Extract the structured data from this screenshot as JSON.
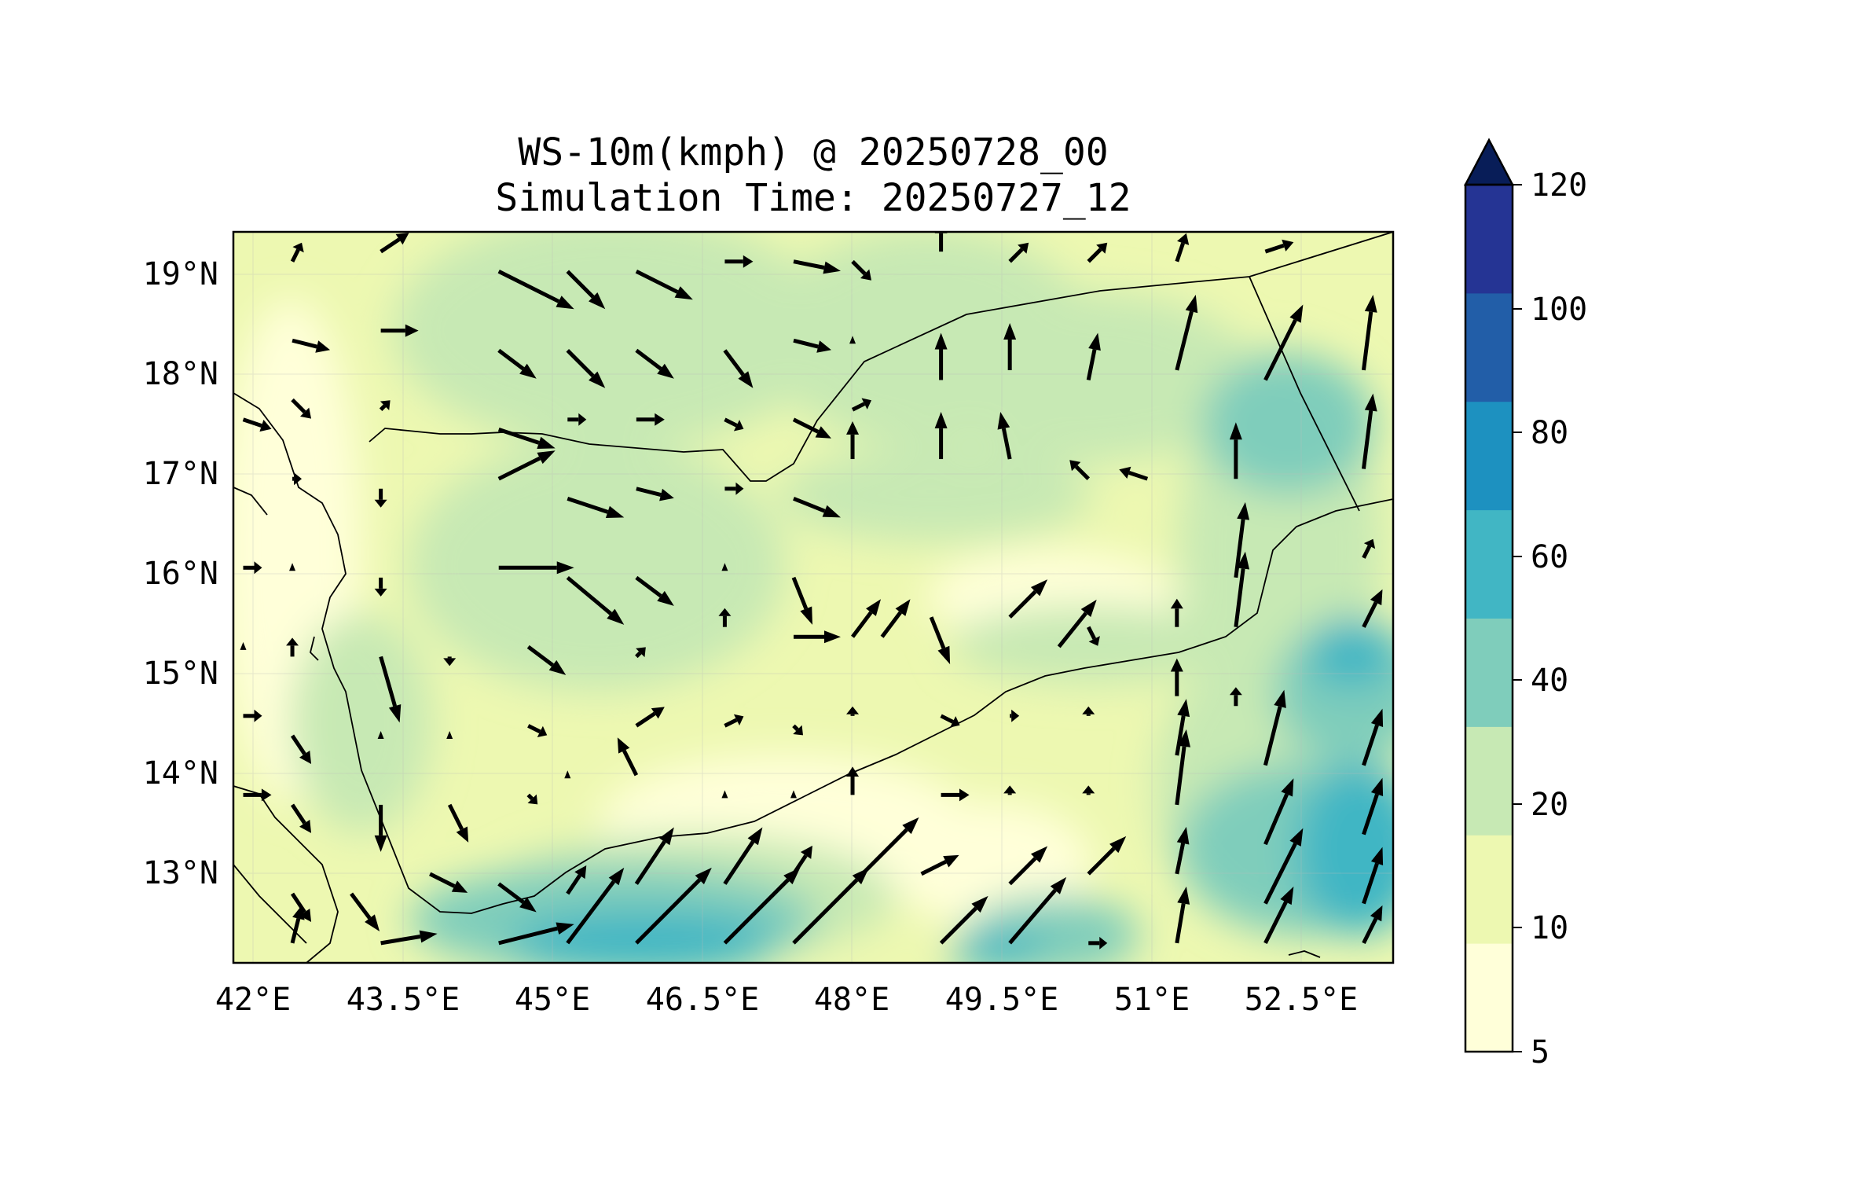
{
  "title": {
    "line1": "WS-10m(kmph) @ 20250728_00",
    "line2": "Simulation Time: 20250727_12"
  },
  "chart_data": {
    "type": "heatmap",
    "variable": "WS-10m(kmph)",
    "valid_time": "20250728_00",
    "simulation_time": "20250727_12",
    "x_ticks": [
      "42°E",
      "43.5°E",
      "45°E",
      "46.5°E",
      "48°E",
      "49.5°E",
      "51°E",
      "52.5°E"
    ],
    "x_tick_values": [
      42,
      43.5,
      45,
      46.5,
      48,
      49.5,
      51,
      52.5
    ],
    "y_ticks": [
      "13°N",
      "14°N",
      "15°N",
      "16°N",
      "17°N",
      "18°N",
      "19°N"
    ],
    "y_tick_values": [
      13,
      14,
      15,
      16,
      17,
      18,
      19
    ],
    "xlim": [
      41.8,
      53.6
    ],
    "ylim": [
      12.0,
      19.4
    ],
    "grid": true,
    "colorbar": {
      "levels": [
        5,
        10,
        20,
        40,
        60,
        80,
        100,
        120
      ],
      "labels": [
        "5",
        "10",
        "20",
        "40",
        "60",
        "80",
        "100",
        "120"
      ],
      "colors": [
        "#ffffd9",
        "#edf8b1",
        "#c7e9b4",
        "#7fcdbb",
        "#41b6c4",
        "#1d91c0",
        "#225ea8",
        "#253494"
      ],
      "extend_color": "#081d58",
      "extend": "max"
    },
    "wind_vectors": [
      [
        42.4,
        19.1,
        1,
        2
      ],
      [
        43.3,
        19.2,
        3,
        2
      ],
      [
        44.5,
        19.0,
        8,
        -4
      ],
      [
        45.2,
        19.0,
        4,
        -4
      ],
      [
        45.9,
        19.0,
        6,
        -3
      ],
      [
        46.8,
        19.1,
        3,
        0
      ],
      [
        47.5,
        19.1,
        5,
        -1
      ],
      [
        48.1,
        19.1,
        2,
        -2
      ],
      [
        49.0,
        19.2,
        0,
        3
      ],
      [
        49.7,
        19.1,
        2,
        2
      ],
      [
        50.5,
        19.1,
        2,
        2
      ],
      [
        51.4,
        19.1,
        1,
        3
      ],
      [
        52.3,
        19.2,
        3,
        1
      ],
      [
        42.4,
        18.3,
        4,
        -1
      ],
      [
        43.3,
        18.4,
        4,
        0
      ],
      [
        44.5,
        18.2,
        4,
        -3
      ],
      [
        45.2,
        18.2,
        4,
        -4
      ],
      [
        45.9,
        18.2,
        4,
        -3
      ],
      [
        46.8,
        18.2,
        3,
        -4
      ],
      [
        47.5,
        18.3,
        4,
        -1
      ],
      [
        48.1,
        18.3,
        0,
        0
      ],
      [
        49.0,
        17.9,
        0,
        5
      ],
      [
        49.7,
        18.0,
        0,
        5
      ],
      [
        50.5,
        17.9,
        1,
        5
      ],
      [
        51.4,
        18.0,
        2,
        8
      ],
      [
        52.3,
        17.9,
        4,
        8
      ],
      [
        53.3,
        18.0,
        1,
        8
      ],
      [
        41.9,
        17.5,
        3,
        -1
      ],
      [
        42.4,
        17.7,
        2,
        -2
      ],
      [
        43.3,
        17.6,
        1,
        1
      ],
      [
        44.5,
        17.4,
        6,
        -2
      ],
      [
        45.2,
        17.5,
        2,
        0
      ],
      [
        45.9,
        17.5,
        3,
        0
      ],
      [
        46.8,
        17.5,
        2,
        -1
      ],
      [
        47.5,
        17.5,
        4,
        -2
      ],
      [
        48.1,
        17.6,
        2,
        1
      ],
      [
        48.1,
        17.1,
        0,
        4
      ],
      [
        49.0,
        17.1,
        0,
        5
      ],
      [
        49.7,
        17.1,
        -1,
        5
      ],
      [
        50.5,
        16.9,
        -2,
        2
      ],
      [
        51.1,
        16.9,
        -3,
        1
      ],
      [
        52.0,
        16.9,
        0,
        6
      ],
      [
        53.3,
        17.0,
        1,
        8
      ],
      [
        42.4,
        16.9,
        1,
        0
      ],
      [
        43.3,
        16.8,
        0,
        -2
      ],
      [
        44.5,
        16.9,
        6,
        3
      ],
      [
        45.2,
        16.7,
        6,
        -2
      ],
      [
        45.9,
        16.8,
        4,
        -1
      ],
      [
        46.8,
        16.8,
        2,
        0
      ],
      [
        47.5,
        16.7,
        5,
        -2
      ],
      [
        41.9,
        16.0,
        2,
        0
      ],
      [
        42.4,
        16.0,
        0,
        0
      ],
      [
        43.3,
        15.9,
        0,
        -2
      ],
      [
        44.5,
        16.0,
        8,
        0
      ],
      [
        45.2,
        15.9,
        6,
        -5
      ],
      [
        45.9,
        15.9,
        4,
        -3
      ],
      [
        46.8,
        16.0,
        0,
        0
      ],
      [
        47.5,
        15.9,
        2,
        -5
      ],
      [
        48.1,
        15.3,
        3,
        4
      ],
      [
        48.9,
        15.5,
        2,
        -5
      ],
      [
        49.7,
        15.5,
        4,
        4
      ],
      [
        50.5,
        15.4,
        1,
        -2
      ],
      [
        51.4,
        15.4,
        0,
        3
      ],
      [
        52.0,
        15.9,
        1,
        8
      ],
      [
        53.3,
        16.1,
        1,
        2
      ],
      [
        41.9,
        15.2,
        0,
        0
      ],
      [
        42.4,
        15.1,
        0,
        2
      ],
      [
        43.3,
        15.1,
        2,
        -7
      ],
      [
        44.0,
        15.1,
        0,
        -1
      ],
      [
        44.8,
        15.2,
        4,
        -3
      ],
      [
        45.9,
        15.1,
        1,
        1
      ],
      [
        46.8,
        15.4,
        0,
        2
      ],
      [
        47.5,
        15.3,
        5,
        0
      ],
      [
        48.4,
        15.3,
        3,
        4
      ],
      [
        50.2,
        15.2,
        4,
        5
      ],
      [
        51.4,
        14.7,
        0,
        4
      ],
      [
        52.0,
        15.4,
        1,
        8
      ],
      [
        53.3,
        15.4,
        2,
        4
      ],
      [
        41.9,
        14.5,
        2,
        0
      ],
      [
        42.4,
        14.3,
        2,
        -3
      ],
      [
        43.3,
        14.3,
        0,
        0
      ],
      [
        44.0,
        14.3,
        0,
        0
      ],
      [
        44.8,
        14.4,
        2,
        -1
      ],
      [
        45.9,
        14.4,
        3,
        2
      ],
      [
        46.8,
        14.4,
        2,
        1
      ],
      [
        47.5,
        14.4,
        1,
        -1
      ],
      [
        48.1,
        14.5,
        0,
        1
      ],
      [
        49.0,
        14.5,
        2,
        -1
      ],
      [
        49.7,
        14.5,
        1,
        0
      ],
      [
        50.5,
        14.5,
        0,
        1
      ],
      [
        51.4,
        14.1,
        1,
        6
      ],
      [
        52.0,
        14.6,
        0,
        2
      ],
      [
        52.3,
        14.0,
        2,
        8
      ],
      [
        53.3,
        14.0,
        2,
        6
      ],
      [
        41.9,
        13.7,
        3,
        0
      ],
      [
        42.4,
        13.6,
        2,
        -3
      ],
      [
        43.3,
        13.6,
        0,
        -5
      ],
      [
        44.0,
        13.6,
        2,
        -4
      ],
      [
        44.8,
        13.7,
        1,
        -1
      ],
      [
        45.2,
        13.9,
        0,
        0
      ],
      [
        45.9,
        13.9,
        -2,
        4
      ],
      [
        46.8,
        13.7,
        0,
        0
      ],
      [
        47.5,
        13.7,
        0,
        0
      ],
      [
        48.1,
        13.7,
        0,
        3
      ],
      [
        49.0,
        13.7,
        3,
        0
      ],
      [
        49.7,
        13.7,
        0,
        1
      ],
      [
        50.5,
        13.7,
        0,
        1
      ],
      [
        51.4,
        13.6,
        1,
        8
      ],
      [
        52.3,
        13.2,
        3,
        7
      ],
      [
        53.3,
        13.3,
        2,
        6
      ],
      [
        42.4,
        12.7,
        2,
        -3
      ],
      [
        43.0,
        12.7,
        3,
        -4
      ],
      [
        43.8,
        12.9,
        4,
        -2
      ],
      [
        44.5,
        12.8,
        4,
        -3
      ],
      [
        45.2,
        12.7,
        2,
        3
      ],
      [
        45.9,
        12.8,
        4,
        6
      ],
      [
        46.8,
        12.8,
        4,
        6
      ],
      [
        47.5,
        12.9,
        2,
        3
      ],
      [
        48.2,
        12.9,
        6,
        6
      ],
      [
        48.8,
        12.9,
        4,
        2
      ],
      [
        49.7,
        12.8,
        4,
        4
      ],
      [
        50.5,
        12.9,
        4,
        4
      ],
      [
        51.4,
        12.9,
        1,
        5
      ],
      [
        52.3,
        12.6,
        4,
        8
      ],
      [
        53.3,
        12.6,
        2,
        6
      ],
      [
        42.4,
        12.2,
        1,
        4
      ],
      [
        43.3,
        12.2,
        6,
        1
      ],
      [
        44.5,
        12.2,
        8,
        2
      ],
      [
        45.2,
        12.2,
        6,
        8
      ],
      [
        45.9,
        12.2,
        8,
        8
      ],
      [
        46.8,
        12.2,
        8,
        8
      ],
      [
        47.5,
        12.2,
        8,
        8
      ],
      [
        49.0,
        12.2,
        5,
        5
      ],
      [
        49.7,
        12.2,
        6,
        7
      ],
      [
        50.5,
        12.2,
        2,
        0
      ],
      [
        51.4,
        12.2,
        1,
        6
      ],
      [
        52.3,
        12.2,
        3,
        6
      ],
      [
        53.3,
        12.2,
        2,
        4
      ]
    ]
  }
}
